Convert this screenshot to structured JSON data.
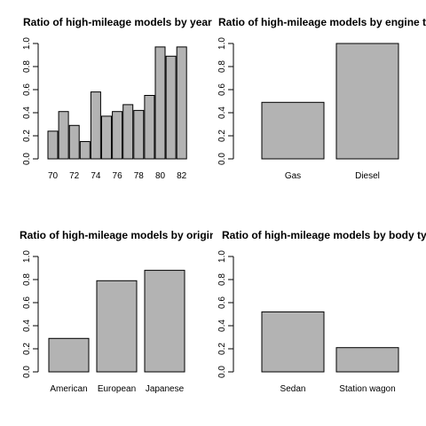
{
  "chart_data": [
    {
      "type": "bar",
      "title": "Ratio of high-mileage models by year",
      "categories": [
        "70",
        "71",
        "72",
        "73",
        "74",
        "75",
        "76",
        "77",
        "78",
        "79",
        "80",
        "81",
        "82"
      ],
      "values": [
        0.24,
        0.41,
        0.29,
        0.15,
        0.58,
        0.37,
        0.41,
        0.47,
        0.42,
        0.55,
        0.97,
        0.89,
        0.97
      ],
      "x_tick_labels": [
        "70",
        "72",
        "74",
        "76",
        "78",
        "80",
        "82"
      ],
      "x_tick_categories": [
        "70",
        "72",
        "74",
        "76",
        "78",
        "80",
        "82"
      ],
      "ylim": [
        0,
        1
      ],
      "y_ticks": [
        "0.0",
        "0.2",
        "0.4",
        "0.6",
        "0.8",
        "1.0"
      ],
      "bar_color": "#b3b3b3"
    },
    {
      "type": "bar",
      "title": "Ratio of high-mileage models by engine type",
      "categories": [
        "Gas",
        "Diesel"
      ],
      "values": [
        0.49,
        1.0
      ],
      "x_tick_labels": [
        "Gas",
        "Diesel"
      ],
      "x_tick_categories": [
        "Gas",
        "Diesel"
      ],
      "ylim": [
        0,
        1
      ],
      "y_ticks": [
        "0.0",
        "0.2",
        "0.4",
        "0.6",
        "0.8",
        "1.0"
      ],
      "bar_color": "#b3b3b3"
    },
    {
      "type": "bar",
      "title": "Ratio of high-mileage models by origin",
      "categories": [
        "American",
        "European",
        "Japanese"
      ],
      "values": [
        0.29,
        0.79,
        0.88
      ],
      "x_tick_labels": [
        "American",
        "European",
        "Japanese"
      ],
      "x_tick_categories": [
        "American",
        "European",
        "Japanese"
      ],
      "ylim": [
        0,
        1
      ],
      "y_ticks": [
        "0.0",
        "0.2",
        "0.4",
        "0.6",
        "0.8",
        "1.0"
      ],
      "bar_color": "#b3b3b3"
    },
    {
      "type": "bar",
      "title": "Ratio of high-mileage models by body type",
      "categories": [
        "Sedan",
        "Station wagon"
      ],
      "values": [
        0.52,
        0.21
      ],
      "x_tick_labels": [
        "Sedan",
        "Station wagon"
      ],
      "x_tick_categories": [
        "Sedan",
        "Station wagon"
      ],
      "ylim": [
        0,
        1
      ],
      "y_ticks": [
        "0.0",
        "0.2",
        "0.4",
        "0.6",
        "0.8",
        "1.0"
      ],
      "bar_color": "#b3b3b3"
    }
  ]
}
